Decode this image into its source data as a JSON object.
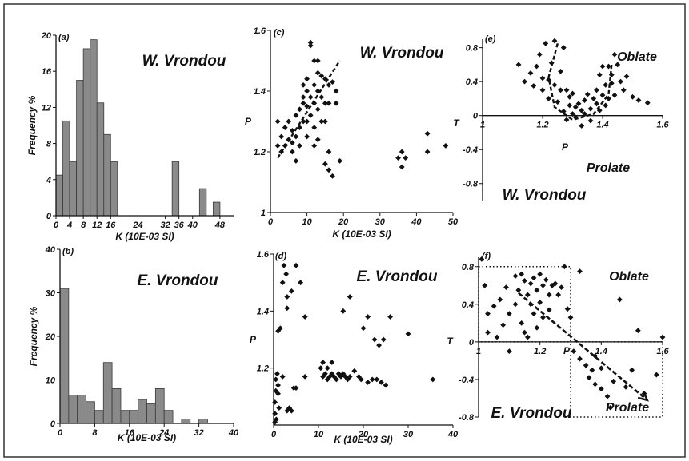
{
  "chart_data": [
    {
      "id": "a",
      "type": "bar",
      "panel_label": "(a)",
      "title": "W. Vrondou",
      "xlabel": "K (10E-03 SI)",
      "ylabel": "Frequency %",
      "xlim": [
        0,
        52
      ],
      "ylim": [
        0,
        20
      ],
      "bin_width": 2,
      "x_ticks": [
        0,
        4,
        8,
        12,
        16,
        24,
        32,
        36,
        40,
        48
      ],
      "y_ticks": [
        0,
        4,
        8,
        12,
        16,
        20
      ],
      "bins": [
        {
          "x": 0,
          "value": 4.5
        },
        {
          "x": 2,
          "value": 10.5
        },
        {
          "x": 4,
          "value": 6
        },
        {
          "x": 6,
          "value": 15
        },
        {
          "x": 8,
          "value": 18.5
        },
        {
          "x": 10,
          "value": 19.5
        },
        {
          "x": 12,
          "value": 12.5
        },
        {
          "x": 14,
          "value": 9
        },
        {
          "x": 16,
          "value": 6
        },
        {
          "x": 34,
          "value": 6
        },
        {
          "x": 42,
          "value": 3
        },
        {
          "x": 46,
          "value": 1.5
        }
      ]
    },
    {
      "id": "b",
      "type": "bar",
      "panel_label": "(b)",
      "title": "E. Vrondou",
      "xlabel": "K (10E-03 SI)",
      "ylabel": "Frequency %",
      "xlim": [
        0,
        40
      ],
      "ylim": [
        0,
        40
      ],
      "bin_width": 2,
      "x_ticks": [
        0,
        8,
        16,
        24,
        32,
        40
      ],
      "y_ticks": [
        0,
        10,
        20,
        30,
        40
      ],
      "bins": [
        {
          "x": 0,
          "value": 31
        },
        {
          "x": 2,
          "value": 6.5
        },
        {
          "x": 4,
          "value": 6.5
        },
        {
          "x": 6,
          "value": 5
        },
        {
          "x": 8,
          "value": 3
        },
        {
          "x": 10,
          "value": 14
        },
        {
          "x": 12,
          "value": 8
        },
        {
          "x": 14,
          "value": 3
        },
        {
          "x": 16,
          "value": 3
        },
        {
          "x": 18,
          "value": 5.5
        },
        {
          "x": 20,
          "value": 4.5
        },
        {
          "x": 22,
          "value": 8
        },
        {
          "x": 24,
          "value": 3
        },
        {
          "x": 28,
          "value": 1
        },
        {
          "x": 32,
          "value": 1
        }
      ]
    },
    {
      "id": "c",
      "type": "scatter",
      "panel_label": "(c)",
      "title": "W. Vrondou",
      "xlabel": "K (10E-03 SI)",
      "ylabel": "P",
      "xlim": [
        0,
        50
      ],
      "ylim": [
        1.0,
        1.6
      ],
      "x_ticks": [
        0,
        10,
        20,
        30,
        40,
        50
      ],
      "y_ticks": [
        1,
        1.2,
        1.4,
        1.6
      ],
      "trend": [
        [
          2,
          1.18
        ],
        [
          19,
          1.5
        ]
      ],
      "points": [
        [
          2,
          1.3
        ],
        [
          2,
          1.22
        ],
        [
          3,
          1.2
        ],
        [
          3,
          1.25
        ],
        [
          4,
          1.22
        ],
        [
          4,
          1.28
        ],
        [
          5,
          1.24
        ],
        [
          5,
          1.3
        ],
        [
          6,
          1.23
        ],
        [
          6,
          1.27
        ],
        [
          6,
          1.2
        ],
        [
          7,
          1.25
        ],
        [
          7,
          1.32
        ],
        [
          7,
          1.17
        ],
        [
          8,
          1.28
        ],
        [
          8,
          1.34
        ],
        [
          8,
          1.22
        ],
        [
          9,
          1.36
        ],
        [
          9,
          1.3
        ],
        [
          9,
          1.38
        ],
        [
          9,
          1.42
        ],
        [
          10,
          1.4
        ],
        [
          10,
          1.35
        ],
        [
          10,
          1.44
        ],
        [
          10,
          1.3
        ],
        [
          10,
          1.25
        ],
        [
          11,
          1.56
        ],
        [
          11,
          1.55
        ],
        [
          11,
          1.38
        ],
        [
          11,
          1.32
        ],
        [
          12,
          1.5
        ],
        [
          12,
          1.42
        ],
        [
          12,
          1.36
        ],
        [
          12,
          1.28
        ],
        [
          12,
          1.22
        ],
        [
          13,
          1.46
        ],
        [
          13,
          1.4
        ],
        [
          13,
          1.34
        ],
        [
          13,
          1.5
        ],
        [
          13,
          1.24
        ],
        [
          14,
          1.45
        ],
        [
          14,
          1.38
        ],
        [
          14,
          1.3
        ],
        [
          15,
          1.44
        ],
        [
          15,
          1.36
        ],
        [
          15,
          1.3
        ],
        [
          15,
          1.16
        ],
        [
          16,
          1.42
        ],
        [
          16,
          1.36
        ],
        [
          16,
          1.14
        ],
        [
          16,
          1.2
        ],
        [
          17,
          1.43
        ],
        [
          17,
          1.12
        ],
        [
          18,
          1.4
        ],
        [
          18,
          1.36
        ],
        [
          19,
          1.17
        ],
        [
          35,
          1.18
        ],
        [
          36,
          1.15
        ],
        [
          36,
          1.2
        ],
        [
          37,
          1.18
        ],
        [
          43,
          1.2
        ],
        [
          43,
          1.26
        ],
        [
          48,
          1.22
        ]
      ]
    },
    {
      "id": "d",
      "type": "scatter",
      "panel_label": "(d)",
      "title": "E. Vrondou",
      "xlabel": "K (10E-03 SI)",
      "ylabel": "P",
      "xlim": [
        0,
        40
      ],
      "ylim": [
        1.0,
        1.6
      ],
      "x_ticks": [
        0,
        10,
        20,
        30,
        40
      ],
      "y_ticks": [
        1.2,
        1.4,
        1.6
      ],
      "points": [
        [
          0.3,
          1.01
        ],
        [
          0.3,
          1.04
        ],
        [
          0.3,
          1.08
        ],
        [
          0.5,
          1.12
        ],
        [
          0.5,
          1.16
        ],
        [
          0.6,
          1.02
        ],
        [
          0.8,
          1.18
        ],
        [
          1,
          1.14
        ],
        [
          1,
          1.33
        ],
        [
          1,
          1.11
        ],
        [
          1.2,
          1.06
        ],
        [
          1.5,
          1.34
        ],
        [
          2,
          1.17
        ],
        [
          2,
          1.5
        ],
        [
          2.3,
          1.56
        ],
        [
          2.8,
          1.53
        ],
        [
          3,
          1.45
        ],
        [
          3,
          1.41
        ],
        [
          3,
          1.05
        ],
        [
          3.5,
          1.06
        ],
        [
          4,
          1.05
        ],
        [
          4,
          1.47
        ],
        [
          4.5,
          1.13
        ],
        [
          5,
          1.13
        ],
        [
          5,
          1.56
        ],
        [
          6,
          1.5
        ],
        [
          7,
          1.17
        ],
        [
          7,
          1.38
        ],
        [
          10.5,
          1.2
        ],
        [
          11,
          1.22
        ],
        [
          11,
          1.17
        ],
        [
          11.5,
          1.18
        ],
        [
          12,
          1.16
        ],
        [
          12,
          1.2
        ],
        [
          12.5,
          1.17
        ],
        [
          13,
          1.18
        ],
        [
          13,
          1.22
        ],
        [
          13.5,
          1.17
        ],
        [
          14,
          1.16
        ],
        [
          14.5,
          1.18
        ],
        [
          15,
          1.17
        ],
        [
          15.5,
          1.4
        ],
        [
          15.5,
          1.18
        ],
        [
          16,
          1.17
        ],
        [
          16.5,
          1.16
        ],
        [
          17,
          1.45
        ],
        [
          17,
          1.17
        ],
        [
          18,
          1.19
        ],
        [
          19,
          1.17
        ],
        [
          19.5,
          1.16
        ],
        [
          20,
          1.34
        ],
        [
          21,
          1.15
        ],
        [
          21,
          1.38
        ],
        [
          22,
          1.16
        ],
        [
          22.5,
          1.3
        ],
        [
          23,
          1.16
        ],
        [
          23.5,
          1.28
        ],
        [
          24,
          1.15
        ],
        [
          24.5,
          1.3
        ],
        [
          25,
          1.14
        ],
        [
          26,
          1.38
        ],
        [
          30,
          1.32
        ],
        [
          35.5,
          1.16
        ]
      ]
    },
    {
      "id": "e",
      "type": "scatter",
      "panel_label": "(e)",
      "title": "W. Vrondou",
      "xlabel": "P",
      "ylabel": "T",
      "xlim": [
        1.0,
        1.6
      ],
      "ylim": [
        -1.0,
        0.9
      ],
      "x_ticks": [
        1,
        1.2,
        1.4,
        1.6
      ],
      "y_ticks": [
        -0.8,
        -0.4,
        0,
        0.4,
        0.8
      ],
      "annotations": [
        "Oblate",
        "Prolate"
      ],
      "trend": [
        [
          1.25,
          0.85
        ],
        [
          1.22,
          0.45
        ],
        [
          1.24,
          0.1
        ],
        [
          1.3,
          -0.05
        ],
        [
          1.37,
          0.02
        ],
        [
          1.42,
          0.25
        ],
        [
          1.43,
          0.6
        ]
      ],
      "points": [
        [
          1.12,
          0.6
        ],
        [
          1.14,
          0.4
        ],
        [
          1.16,
          0.5
        ],
        [
          1.17,
          0.35
        ],
        [
          1.18,
          0.58
        ],
        [
          1.19,
          0.72
        ],
        [
          1.2,
          0.44
        ],
        [
          1.2,
          0.3
        ],
        [
          1.21,
          0.85
        ],
        [
          1.22,
          0.2
        ],
        [
          1.22,
          0.42
        ],
        [
          1.23,
          0.62
        ],
        [
          1.24,
          0.36
        ],
        [
          1.24,
          0.88
        ],
        [
          1.25,
          0.16
        ],
        [
          1.26,
          0.3
        ],
        [
          1.26,
          0.52
        ],
        [
          1.27,
          0.05
        ],
        [
          1.27,
          0.8
        ],
        [
          1.28,
          -0.05
        ],
        [
          1.28,
          0.3
        ],
        [
          1.29,
          0.22
        ],
        [
          1.29,
          0.12
        ],
        [
          1.3,
          0.02
        ],
        [
          1.3,
          0.26
        ],
        [
          1.31,
          -0.02
        ],
        [
          1.31,
          0.1
        ],
        [
          1.32,
          0.14
        ],
        [
          1.33,
          0.06
        ],
        [
          1.33,
          -0.12
        ],
        [
          1.34,
          0.18
        ],
        [
          1.34,
          0.02
        ],
        [
          1.35,
          0.25
        ],
        [
          1.36,
          0.08
        ],
        [
          1.36,
          -0.06
        ],
        [
          1.37,
          0.2
        ],
        [
          1.38,
          0.3
        ],
        [
          1.38,
          0.14
        ],
        [
          1.39,
          0.48
        ],
        [
          1.39,
          0.06
        ],
        [
          1.4,
          0.58
        ],
        [
          1.4,
          0.24
        ],
        [
          1.41,
          0.36
        ],
        [
          1.41,
          0.12
        ],
        [
          1.42,
          0.58
        ],
        [
          1.42,
          0.2
        ],
        [
          1.43,
          0.48
        ],
        [
          1.43,
          0.38
        ],
        [
          1.44,
          0.72
        ],
        [
          1.44,
          0.24
        ],
        [
          1.45,
          0.6
        ],
        [
          1.46,
          0.4
        ],
        [
          1.47,
          0.3
        ],
        [
          1.48,
          0.46
        ],
        [
          1.5,
          0.22
        ],
        [
          1.52,
          0.18
        ],
        [
          1.55,
          0.15
        ]
      ]
    },
    {
      "id": "f",
      "type": "scatter",
      "panel_label": "(f)",
      "title": "E. Vrondou",
      "xlabel": "P",
      "ylabel": "T",
      "xlim": [
        1.0,
        1.6
      ],
      "ylim": [
        -0.8,
        0.9
      ],
      "x_ticks": [
        1.2,
        1.4,
        1.6
      ],
      "y_ticks": [
        -0.8,
        -0.4,
        0,
        0.4,
        0.8
      ],
      "annotations": [
        "Oblate",
        "Prolate"
      ],
      "arrow": [
        [
          1.13,
          0.52
        ],
        [
          1.55,
          -0.62
        ]
      ],
      "boxes": [
        {
          "x0": 1.0,
          "x1": 1.3,
          "y0": 0,
          "y1": 0.8
        },
        {
          "x0": 1.3,
          "x1": 1.6,
          "y0": -0.8,
          "y1": 0
        }
      ],
      "points": [
        [
          1.01,
          0.88
        ],
        [
          1.02,
          0.6
        ],
        [
          1.03,
          0.3
        ],
        [
          1.03,
          0.1
        ],
        [
          1.05,
          0.38
        ],
        [
          1.06,
          0.05
        ],
        [
          1.07,
          0.45
        ],
        [
          1.08,
          0.18
        ],
        [
          1.09,
          0.58
        ],
        [
          1.1,
          -0.1
        ],
        [
          1.1,
          0.3
        ],
        [
          1.12,
          0.7
        ],
        [
          1.12,
          0.4
        ],
        [
          1.13,
          0.55
        ],
        [
          1.14,
          0.72
        ],
        [
          1.14,
          0.2
        ],
        [
          1.15,
          0.65
        ],
        [
          1.15,
          0.1
        ],
        [
          1.16,
          0.5
        ],
        [
          1.16,
          0.05
        ],
        [
          1.17,
          0.62
        ],
        [
          1.17,
          0.4
        ],
        [
          1.18,
          0.68
        ],
        [
          1.18,
          0.3
        ],
        [
          1.19,
          0.55
        ],
        [
          1.19,
          0.15
        ],
        [
          1.2,
          0.72
        ],
        [
          1.2,
          0.42
        ],
        [
          1.21,
          0.6
        ],
        [
          1.21,
          0.26
        ],
        [
          1.22,
          0.66
        ],
        [
          1.23,
          0.5
        ],
        [
          1.23,
          0.34
        ],
        [
          1.24,
          0.6
        ],
        [
          1.25,
          0.62
        ],
        [
          1.26,
          0.5
        ],
        [
          1.27,
          0.58
        ],
        [
          1.28,
          0.8
        ],
        [
          1.29,
          0.35
        ],
        [
          1.3,
          0.26
        ],
        [
          1.31,
          -0.1
        ],
        [
          1.33,
          0.75
        ],
        [
          1.33,
          -0.18
        ],
        [
          1.35,
          -0.25
        ],
        [
          1.36,
          -0.38
        ],
        [
          1.37,
          -0.3
        ],
        [
          1.38,
          -0.45
        ],
        [
          1.38,
          -0.15
        ],
        [
          1.4,
          -0.5
        ],
        [
          1.4,
          -0.28
        ],
        [
          1.42,
          -0.58
        ],
        [
          1.43,
          -0.7
        ],
        [
          1.44,
          -0.42
        ],
        [
          1.46,
          0.45
        ],
        [
          1.48,
          -0.48
        ],
        [
          1.5,
          -0.3
        ],
        [
          1.52,
          0.12
        ],
        [
          1.54,
          -0.55
        ],
        [
          1.58,
          -0.35
        ],
        [
          1.6,
          0.05
        ]
      ]
    }
  ]
}
